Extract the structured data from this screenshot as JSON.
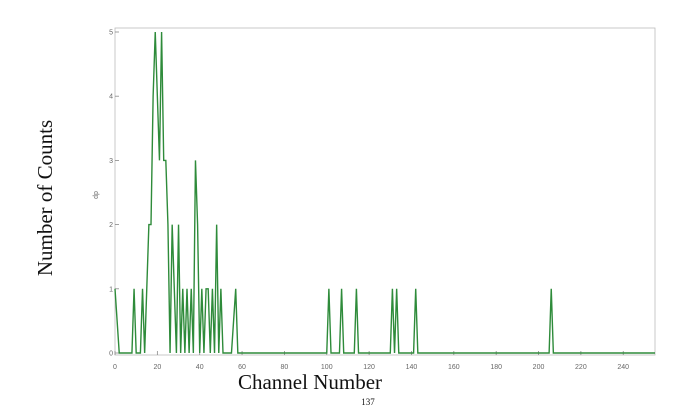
{
  "chart_data": {
    "type": "line",
    "xlabel": "Channel Number",
    "ylabel": "Number of Counts",
    "inner_ylabel": "dp",
    "footer_text": "137",
    "xlim": [
      0,
      255
    ],
    "ylim": [
      0,
      5
    ],
    "x_ticks": [
      0,
      20,
      40,
      60,
      80,
      100,
      120,
      140,
      160,
      180,
      200,
      220,
      240
    ],
    "y_ticks": [
      0,
      1,
      2,
      3,
      4,
      5
    ],
    "grid": false,
    "legend": "none",
    "line_color": "#2e8b3a",
    "series": [
      {
        "x": [
          0,
          2,
          4,
          6,
          8,
          9,
          10,
          12,
          13,
          14,
          16,
          17,
          18,
          19,
          20,
          21,
          22,
          23,
          24,
          25,
          26,
          27,
          28,
          29,
          30,
          31,
          32,
          33,
          34,
          35,
          36,
          37,
          38,
          39,
          40,
          41,
          42,
          43,
          44,
          45,
          46,
          47,
          48,
          49,
          50,
          51,
          52,
          55,
          57,
          58,
          59,
          62,
          100,
          101,
          102,
          103,
          105,
          106,
          107,
          108,
          109,
          112,
          113,
          114,
          115,
          117,
          130,
          131,
          132,
          133,
          134,
          140,
          141,
          142,
          143,
          144,
          146,
          180,
          204,
          205,
          206,
          207,
          209,
          255
        ],
        "y": [
          1,
          0,
          0,
          0,
          0,
          1,
          0,
          0,
          1,
          0,
          2,
          2,
          4,
          5,
          4,
          3,
          5,
          3,
          3,
          2,
          0,
          2,
          1,
          0,
          2,
          0,
          1,
          0,
          1,
          0,
          1,
          0,
          3,
          2,
          0,
          1,
          0,
          1,
          1,
          0,
          1,
          0,
          2,
          0,
          1,
          0,
          0,
          0,
          1,
          0,
          0,
          0,
          0,
          1,
          0,
          0,
          0,
          0,
          1,
          0,
          0,
          0,
          0,
          1,
          0,
          0,
          0,
          1,
          0,
          1,
          0,
          0,
          0,
          1,
          0,
          0,
          0,
          0,
          0,
          0,
          1,
          0,
          0,
          0
        ]
      }
    ]
  }
}
